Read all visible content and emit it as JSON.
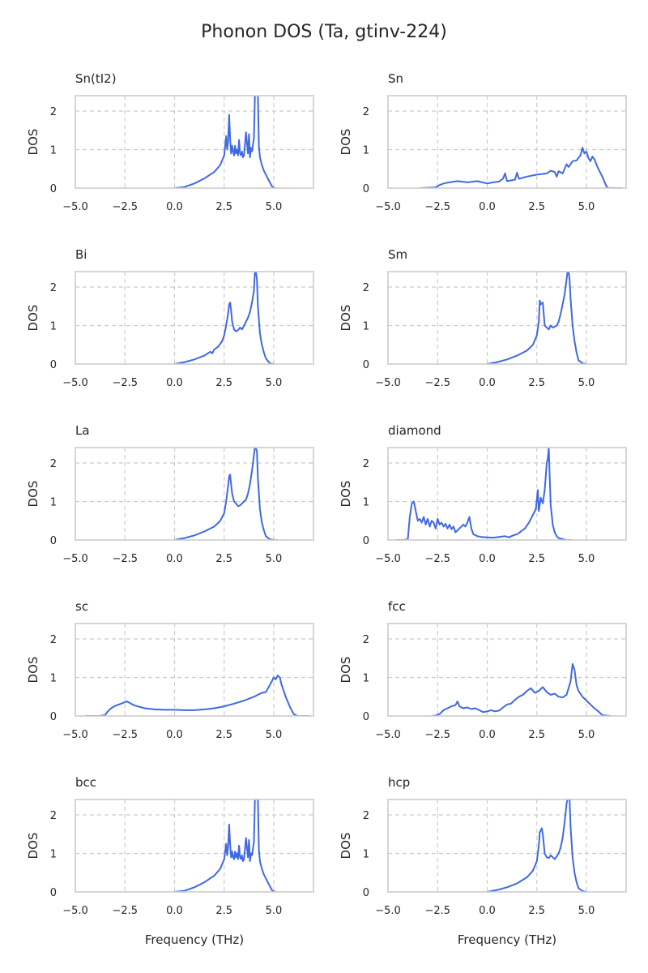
{
  "title": "Phonon DOS (Ta, gtinv-224)",
  "colors": {
    "line": "#4169e1",
    "grid": "#cccccc",
    "frame": "#cccccc",
    "text": "#262626"
  },
  "chart_data": [
    {
      "type": "line",
      "title": "Sn(tI2)",
      "xlabel": "",
      "ylabel": "DOS",
      "xlim": [
        -5,
        7
      ],
      "ylim": [
        0,
        2.4
      ],
      "xticks": [
        -5.0,
        -2.5,
        0.0,
        2.5,
        5.0
      ],
      "xtick_labels": [
        "−5.0",
        "−2.5",
        "0.0",
        "2.5",
        "5.0"
      ],
      "yticks": [
        0,
        1,
        2
      ],
      "ytick_labels": [
        "0",
        "1",
        "2"
      ],
      "grid": true,
      "x": [
        0,
        0.5,
        1,
        1.5,
        2,
        2.3,
        2.5,
        2.6,
        2.65,
        2.7,
        2.75,
        2.8,
        2.85,
        2.9,
        2.95,
        3.0,
        3.05,
        3.1,
        3.15,
        3.2,
        3.25,
        3.3,
        3.35,
        3.4,
        3.45,
        3.5,
        3.6,
        3.7,
        3.75,
        3.8,
        3.85,
        3.9,
        4.0,
        4.05,
        4.1,
        4.15,
        4.2,
        4.25,
        4.3,
        4.4,
        4.5,
        4.7,
        4.9,
        5.0,
        5.1
      ],
      "y": [
        0,
        0.03,
        0.12,
        0.25,
        0.42,
        0.6,
        0.85,
        1.35,
        1.0,
        1.2,
        1.9,
        1.3,
        0.9,
        1.1,
        0.95,
        0.85,
        1.1,
        0.9,
        1.0,
        0.85,
        1.25,
        0.9,
        0.85,
        0.95,
        0.8,
        0.85,
        1.45,
        0.9,
        1.4,
        0.8,
        1.05,
        0.95,
        1.3,
        2.4,
        2.4,
        2.4,
        2.4,
        1.1,
        0.8,
        0.6,
        0.45,
        0.25,
        0.05,
        0.01,
        0
      ]
    },
    {
      "type": "line",
      "title": "Sn",
      "xlabel": "",
      "ylabel": "DOS",
      "xlim": [
        -5,
        7
      ],
      "ylim": [
        0,
        2.4
      ],
      "xticks": [
        -5.0,
        -2.5,
        0.0,
        2.5,
        5.0
      ],
      "xtick_labels": [
        "−5.0",
        "−2.5",
        "0.0",
        "2.5",
        "5.0"
      ],
      "yticks": [
        0,
        1,
        2
      ],
      "ytick_labels": [
        "0",
        "1",
        "2"
      ],
      "grid": true,
      "x": [
        -3.4,
        -2.6,
        -2.4,
        -2.2,
        -2.0,
        -1.5,
        -1.0,
        -0.5,
        0.0,
        0.3,
        0.6,
        0.8,
        0.9,
        1.0,
        1.2,
        1.4,
        1.5,
        1.6,
        2.0,
        2.5,
        3.0,
        3.2,
        3.4,
        3.5,
        3.6,
        3.8,
        4.0,
        4.1,
        4.3,
        4.5,
        4.7,
        4.8,
        4.9,
        5.0,
        5.1,
        5.2,
        5.3,
        5.4,
        5.5,
        5.6,
        5.8,
        6.0,
        6.1,
        6.5,
        6.8
      ],
      "y": [
        0,
        0.02,
        0.08,
        0.12,
        0.14,
        0.18,
        0.15,
        0.18,
        0.12,
        0.15,
        0.17,
        0.25,
        0.38,
        0.18,
        0.2,
        0.22,
        0.4,
        0.24,
        0.3,
        0.35,
        0.38,
        0.45,
        0.42,
        0.3,
        0.44,
        0.38,
        0.62,
        0.55,
        0.7,
        0.72,
        0.85,
        1.05,
        0.9,
        0.95,
        0.78,
        0.7,
        0.82,
        0.75,
        0.62,
        0.5,
        0.3,
        0.05,
        0,
        0,
        0
      ]
    },
    {
      "type": "line",
      "title": "Bi",
      "xlabel": "",
      "ylabel": "DOS",
      "xlim": [
        -5,
        7
      ],
      "ylim": [
        0,
        2.4
      ],
      "xticks": [
        -5.0,
        -2.5,
        0.0,
        2.5,
        5.0
      ],
      "xtick_labels": [
        "−5.0",
        "−2.5",
        "0.0",
        "2.5",
        "5.0"
      ],
      "yticks": [
        0,
        1,
        2
      ],
      "ytick_labels": [
        "0",
        "1",
        "2"
      ],
      "grid": true,
      "x": [
        0,
        0.5,
        1.0,
        1.5,
        1.8,
        1.9,
        2.0,
        2.2,
        2.4,
        2.5,
        2.6,
        2.7,
        2.75,
        2.8,
        2.85,
        2.9,
        3.0,
        3.1,
        3.2,
        3.3,
        3.4,
        3.5,
        3.6,
        3.7,
        3.8,
        3.9,
        4.0,
        4.05,
        4.1,
        4.15,
        4.2,
        4.3,
        4.4,
        4.5,
        4.6,
        4.8,
        5.0
      ],
      "y": [
        0,
        0.05,
        0.12,
        0.22,
        0.32,
        0.28,
        0.38,
        0.45,
        0.6,
        0.75,
        1.0,
        1.3,
        1.55,
        1.6,
        1.4,
        1.1,
        0.9,
        0.85,
        0.88,
        0.95,
        0.9,
        1.0,
        1.1,
        1.2,
        1.35,
        1.6,
        1.9,
        2.4,
        2.4,
        2.2,
        1.5,
        0.8,
        0.5,
        0.3,
        0.15,
        0.02,
        0
      ]
    },
    {
      "type": "line",
      "title": "Sm",
      "xlabel": "",
      "ylabel": "DOS",
      "xlim": [
        -5,
        7
      ],
      "ylim": [
        0,
        2.4
      ],
      "xticks": [
        -5.0,
        -2.5,
        0.0,
        2.5,
        5.0
      ],
      "xtick_labels": [
        "−5.0",
        "−2.5",
        "0.0",
        "2.5",
        "5.0"
      ],
      "yticks": [
        0,
        1,
        2
      ],
      "ytick_labels": [
        "0",
        "1",
        "2"
      ],
      "grid": true,
      "x": [
        0,
        0.5,
        1.0,
        1.5,
        2.0,
        2.3,
        2.5,
        2.6,
        2.65,
        2.7,
        2.8,
        2.85,
        2.9,
        3.0,
        3.1,
        3.2,
        3.3,
        3.4,
        3.5,
        3.6,
        3.7,
        3.8,
        3.9,
        4.0,
        4.05,
        4.1,
        4.15,
        4.2,
        4.3,
        4.4,
        4.5,
        4.6,
        4.8,
        5.0
      ],
      "y": [
        0,
        0.05,
        0.12,
        0.22,
        0.35,
        0.5,
        0.75,
        1.1,
        1.65,
        1.55,
        1.6,
        1.3,
        1.0,
        0.95,
        0.9,
        1.0,
        0.95,
        0.97,
        1.0,
        1.1,
        1.3,
        1.55,
        1.8,
        2.2,
        2.4,
        2.4,
        2.2,
        1.7,
        1.0,
        0.6,
        0.3,
        0.1,
        0.02,
        0
      ]
    },
    {
      "type": "line",
      "title": "La",
      "xlabel": "",
      "ylabel": "DOS",
      "xlim": [
        -5,
        7
      ],
      "ylim": [
        0,
        2.4
      ],
      "xticks": [
        -5.0,
        -2.5,
        0.0,
        2.5,
        5.0
      ],
      "xtick_labels": [
        "−5.0",
        "−2.5",
        "0.0",
        "2.5",
        "5.0"
      ],
      "yticks": [
        0,
        1,
        2
      ],
      "ytick_labels": [
        "0",
        "1",
        "2"
      ],
      "grid": true,
      "x": [
        0,
        0.5,
        1.0,
        1.5,
        2.0,
        2.3,
        2.5,
        2.6,
        2.7,
        2.75,
        2.8,
        2.85,
        2.9,
        3.0,
        3.1,
        3.2,
        3.3,
        3.4,
        3.5,
        3.6,
        3.7,
        3.8,
        3.9,
        4.0,
        4.05,
        4.1,
        4.15,
        4.2,
        4.3,
        4.4,
        4.5,
        4.6,
        4.8,
        5.0,
        5.2
      ],
      "y": [
        0,
        0.05,
        0.12,
        0.22,
        0.35,
        0.5,
        0.7,
        1.0,
        1.4,
        1.65,
        1.7,
        1.45,
        1.2,
        1.0,
        0.95,
        0.88,
        0.9,
        0.95,
        1.0,
        1.05,
        1.2,
        1.45,
        1.8,
        2.2,
        2.4,
        2.4,
        2.3,
        1.6,
        0.8,
        0.45,
        0.25,
        0.1,
        0.02,
        0,
        0
      ]
    },
    {
      "type": "line",
      "title": "diamond",
      "xlabel": "",
      "ylabel": "DOS",
      "xlim": [
        -5,
        7
      ],
      "ylim": [
        0,
        2.4
      ],
      "xticks": [
        -5.0,
        -2.5,
        0.0,
        2.5,
        5.0
      ],
      "xtick_labels": [
        "−5.0",
        "−2.5",
        "0.0",
        "2.5",
        "5.0"
      ],
      "yticks": [
        0,
        1,
        2
      ],
      "ytick_labels": [
        "0",
        "1",
        "2"
      ],
      "grid": true,
      "x": [
        -4.6,
        -4.2,
        -4.0,
        -3.9,
        -3.8,
        -3.7,
        -3.6,
        -3.5,
        -3.4,
        -3.3,
        -3.2,
        -3.1,
        -3.0,
        -2.9,
        -2.8,
        -2.7,
        -2.6,
        -2.5,
        -2.4,
        -2.3,
        -2.2,
        -2.1,
        -2.0,
        -1.9,
        -1.8,
        -1.7,
        -1.6,
        -1.5,
        -1.4,
        -1.3,
        -1.2,
        -1.1,
        -1.0,
        -0.9,
        -0.8,
        -0.7,
        -0.5,
        -0.3,
        0.0,
        0.3,
        0.6,
        0.9,
        1.1,
        1.3,
        1.5,
        1.7,
        1.9,
        2.1,
        2.3,
        2.45,
        2.55,
        2.6,
        2.7,
        2.8,
        2.9,
        3.0,
        3.05,
        3.1,
        3.15,
        3.2,
        3.3,
        3.4,
        3.5,
        3.6,
        3.8,
        4.0,
        4.3
      ],
      "y": [
        0,
        0,
        0.02,
        0.6,
        0.95,
        1.0,
        0.75,
        0.5,
        0.55,
        0.45,
        0.6,
        0.4,
        0.55,
        0.35,
        0.5,
        0.45,
        0.3,
        0.55,
        0.4,
        0.45,
        0.35,
        0.42,
        0.3,
        0.4,
        0.28,
        0.35,
        0.2,
        0.25,
        0.3,
        0.35,
        0.4,
        0.35,
        0.45,
        0.6,
        0.3,
        0.15,
        0.1,
        0.08,
        0.07,
        0.06,
        0.08,
        0.1,
        0.07,
        0.12,
        0.15,
        0.22,
        0.3,
        0.45,
        0.65,
        0.8,
        1.3,
        0.75,
        1.1,
        0.95,
        1.3,
        2.0,
        2.1,
        2.4,
        1.6,
        0.9,
        0.4,
        0.2,
        0.1,
        0.05,
        0.02,
        0,
        0
      ]
    },
    {
      "type": "line",
      "title": "sc",
      "xlabel": "",
      "ylabel": "DOS",
      "xlim": [
        -5,
        7
      ],
      "ylim": [
        0,
        2.4
      ],
      "xticks": [
        -5.0,
        -2.5,
        0.0,
        2.5,
        5.0
      ],
      "xtick_labels": [
        "−5.0",
        "−2.5",
        "0.0",
        "2.5",
        "5.0"
      ],
      "yticks": [
        0,
        1,
        2
      ],
      "ytick_labels": [
        "0",
        "1",
        "2"
      ],
      "grid": true,
      "x": [
        -4.5,
        -3.8,
        -3.5,
        -3.4,
        -3.2,
        -3.0,
        -2.8,
        -2.6,
        -2.4,
        -2.2,
        -2.0,
        -1.5,
        -1.0,
        -0.5,
        0.0,
        0.5,
        1.0,
        1.5,
        2.0,
        2.5,
        3.0,
        3.5,
        4.0,
        4.2,
        4.4,
        4.6,
        4.8,
        5.0,
        5.1,
        5.2,
        5.3,
        5.4,
        5.5,
        5.6,
        5.8,
        6.0,
        6.2,
        6.5,
        6.8
      ],
      "y": [
        0,
        0,
        0.02,
        0.1,
        0.2,
        0.26,
        0.3,
        0.34,
        0.38,
        0.32,
        0.27,
        0.2,
        0.17,
        0.16,
        0.16,
        0.15,
        0.15,
        0.17,
        0.2,
        0.25,
        0.32,
        0.4,
        0.5,
        0.55,
        0.6,
        0.62,
        0.8,
        1.0,
        0.95,
        1.05,
        1.0,
        0.8,
        0.65,
        0.5,
        0.25,
        0.05,
        0,
        0,
        0
      ]
    },
    {
      "type": "line",
      "title": "fcc",
      "xlabel": "",
      "ylabel": "DOS",
      "xlim": [
        -5,
        7
      ],
      "ylim": [
        0,
        2.4
      ],
      "xticks": [
        -5.0,
        -2.5,
        0.0,
        2.5,
        5.0
      ],
      "xtick_labels": [
        "−5.0",
        "−2.5",
        "0.0",
        "2.5",
        "5.0"
      ],
      "yticks": [
        0,
        1,
        2
      ],
      "ytick_labels": [
        "0",
        "1",
        "2"
      ],
      "grid": true,
      "x": [
        -2.8,
        -2.6,
        -2.4,
        -2.2,
        -2.0,
        -1.8,
        -1.6,
        -1.5,
        -1.4,
        -1.2,
        -1.0,
        -0.8,
        -0.6,
        -0.4,
        -0.2,
        0,
        0.2,
        0.4,
        0.6,
        0.8,
        1.0,
        1.2,
        1.4,
        1.6,
        1.8,
        2.0,
        2.2,
        2.4,
        2.6,
        2.8,
        3.0,
        3.2,
        3.4,
        3.6,
        3.8,
        4.0,
        4.2,
        4.3,
        4.4,
        4.5,
        4.6,
        4.8,
        5.0,
        5.2,
        5.4,
        5.6,
        5.8,
        6.2
      ],
      "y": [
        0,
        0.01,
        0.05,
        0.15,
        0.2,
        0.25,
        0.28,
        0.38,
        0.25,
        0.2,
        0.22,
        0.18,
        0.2,
        0.15,
        0.1,
        0.12,
        0.15,
        0.12,
        0.14,
        0.22,
        0.3,
        0.32,
        0.42,
        0.5,
        0.55,
        0.65,
        0.72,
        0.6,
        0.65,
        0.75,
        0.62,
        0.55,
        0.58,
        0.5,
        0.48,
        0.55,
        0.9,
        1.35,
        1.2,
        0.8,
        0.65,
        0.5,
        0.4,
        0.3,
        0.2,
        0.12,
        0.02,
        0
      ]
    },
    {
      "type": "line",
      "title": "bcc",
      "xlabel": "Frequency (THz)",
      "ylabel": "DOS",
      "xlim": [
        -5,
        7
      ],
      "ylim": [
        0,
        2.4
      ],
      "xticks": [
        -5.0,
        -2.5,
        0.0,
        2.5,
        5.0
      ],
      "xtick_labels": [
        "−5.0",
        "−2.5",
        "0.0",
        "2.5",
        "5.0"
      ],
      "yticks": [
        0,
        1,
        2
      ],
      "ytick_labels": [
        "0",
        "1",
        "2"
      ],
      "grid": true,
      "x": [
        0,
        0.5,
        1.0,
        1.5,
        2.0,
        2.3,
        2.5,
        2.6,
        2.65,
        2.7,
        2.75,
        2.8,
        2.85,
        2.9,
        2.95,
        3.0,
        3.05,
        3.1,
        3.15,
        3.2,
        3.25,
        3.3,
        3.35,
        3.4,
        3.45,
        3.5,
        3.6,
        3.7,
        3.75,
        3.8,
        3.85,
        3.9,
        4.0,
        4.05,
        4.1,
        4.15,
        4.2,
        4.25,
        4.3,
        4.4,
        4.5,
        4.7,
        4.9,
        5.0,
        5.1
      ],
      "y": [
        0,
        0.03,
        0.12,
        0.25,
        0.42,
        0.6,
        0.85,
        1.25,
        0.95,
        1.15,
        1.75,
        1.25,
        0.9,
        1.05,
        0.9,
        0.85,
        1.05,
        0.9,
        1.0,
        0.85,
        1.2,
        0.9,
        0.85,
        0.95,
        0.8,
        0.85,
        1.4,
        0.9,
        1.35,
        0.8,
        1.0,
        0.95,
        1.3,
        2.4,
        2.4,
        2.4,
        2.4,
        1.1,
        0.8,
        0.6,
        0.45,
        0.25,
        0.05,
        0.01,
        0
      ]
    },
    {
      "type": "line",
      "title": "hcp",
      "xlabel": "Frequency (THz)",
      "ylabel": "DOS",
      "xlim": [
        -5,
        7
      ],
      "ylim": [
        0,
        2.4
      ],
      "xticks": [
        -5.0,
        -2.5,
        0.0,
        2.5,
        5.0
      ],
      "xtick_labels": [
        "−5.0",
        "−2.5",
        "0.0",
        "2.5",
        "5.0"
      ],
      "yticks": [
        0,
        1,
        2
      ],
      "ytick_labels": [
        "0",
        "1",
        "2"
      ],
      "grid": true,
      "x": [
        0,
        0.5,
        1.0,
        1.5,
        2.0,
        2.3,
        2.5,
        2.6,
        2.65,
        2.7,
        2.75,
        2.8,
        2.85,
        2.9,
        3.0,
        3.1,
        3.2,
        3.3,
        3.4,
        3.5,
        3.6,
        3.7,
        3.8,
        3.9,
        4.0,
        4.05,
        4.1,
        4.15,
        4.2,
        4.3,
        4.4,
        4.5,
        4.6,
        4.8,
        5.0
      ],
      "y": [
        0,
        0.05,
        0.12,
        0.22,
        0.38,
        0.55,
        0.8,
        1.2,
        1.55,
        1.6,
        1.65,
        1.5,
        1.25,
        1.0,
        0.9,
        0.88,
        0.95,
        0.9,
        0.85,
        0.92,
        1.0,
        1.15,
        1.4,
        1.8,
        2.3,
        2.4,
        2.4,
        2.4,
        1.7,
        0.9,
        0.5,
        0.25,
        0.1,
        0.02,
        0
      ]
    }
  ]
}
